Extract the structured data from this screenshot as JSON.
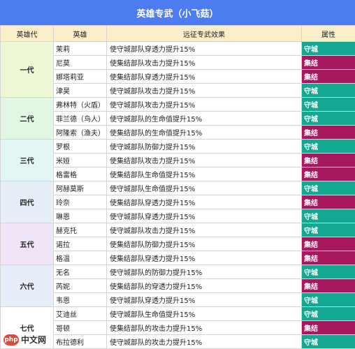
{
  "title": "英雄专武（小飞菇）",
  "headers": [
    "英雄代",
    "英雄",
    "远征专武效果",
    "属性"
  ],
  "colors": {
    "守城": "#14a891",
    "集结": "#a7195e",
    "header_bg": "#4d7bf0"
  },
  "generations": [
    {
      "name": "一代",
      "heroes": [
        {
          "hero": "茉莉",
          "effect": "使守城部队穿透力提升15%",
          "attr": "守城"
        },
        {
          "hero": "尼莫",
          "effect": "使集结部队攻击力提升15%",
          "attr": "集结"
        },
        {
          "hero": "娜塔莉亚",
          "effect": "使集结部队穿透力提升15%",
          "attr": "集结"
        },
        {
          "hero": "津昊",
          "effect": "使守城部队攻击力提升15%",
          "attr": "守城"
        }
      ]
    },
    {
      "name": "二代",
      "heroes": [
        {
          "hero": "弗林特（火盾）",
          "effect": "使守城部队攻击力提升15%",
          "attr": "守城"
        },
        {
          "hero": "菲兰德（鸟人）",
          "effect": "使守城部队的生命值提升15%",
          "attr": "守城"
        },
        {
          "hero": "阿隆索（渔夫）",
          "effect": "使集结部队的生命值提升15%",
          "attr": "集结"
        }
      ]
    },
    {
      "name": "三代",
      "heroes": [
        {
          "hero": "罗根",
          "effect": "使守城部队防御力提升15%",
          "attr": "守城"
        },
        {
          "hero": "米娅",
          "effect": "使集结部队攻击力提升15%",
          "attr": "集结"
        },
        {
          "hero": "格雷格",
          "effect": "使集结部队生命值提升15%",
          "attr": "集结"
        }
      ]
    },
    {
      "name": "四代",
      "heroes": [
        {
          "hero": "阿赫莫斯",
          "effect": "使守城部队生命值提升15%",
          "attr": "守城"
        },
        {
          "hero": "玲奈",
          "effect": "使集结部队穿透力提升15%",
          "attr": "集结"
        },
        {
          "hero": "琳恩",
          "effect": "使守城部队穿透力提升15%",
          "attr": "守城"
        }
      ]
    },
    {
      "name": "五代",
      "heroes": [
        {
          "hero": "赫克托",
          "effect": "使守城部队攻击力提升15%",
          "attr": "守城"
        },
        {
          "hero": "诺拉",
          "effect": "使集结部队防御力提升15%",
          "attr": "集结"
        },
        {
          "hero": "格温",
          "effect": "使集结部队穿透力提升15%",
          "attr": "集结"
        }
      ]
    },
    {
      "name": "六代",
      "heroes": [
        {
          "hero": "无名",
          "effect": "使守城部队的防御力提升15%",
          "attr": "守城"
        },
        {
          "hero": "芮妮",
          "effect": "使集结部队的穿透力提升15%",
          "attr": "集结"
        },
        {
          "hero": "韦恩",
          "effect": "使守城部队穿透力提升15%",
          "attr": "守城"
        }
      ]
    },
    {
      "name": "七代",
      "heroes": [
        {
          "hero": "艾迪丝",
          "effect": "使守城部队生命值提升15%",
          "attr": "守城"
        },
        {
          "hero": "哥顿",
          "effect": "使集结部队的攻击力提升15%",
          "attr": "集结"
        },
        {
          "hero": "布拉德利",
          "effect": "使守城部队的攻击力提升15%",
          "attr": "守城"
        }
      ]
    }
  ],
  "watermark": {
    "icon": "php",
    "text": "中文网"
  }
}
